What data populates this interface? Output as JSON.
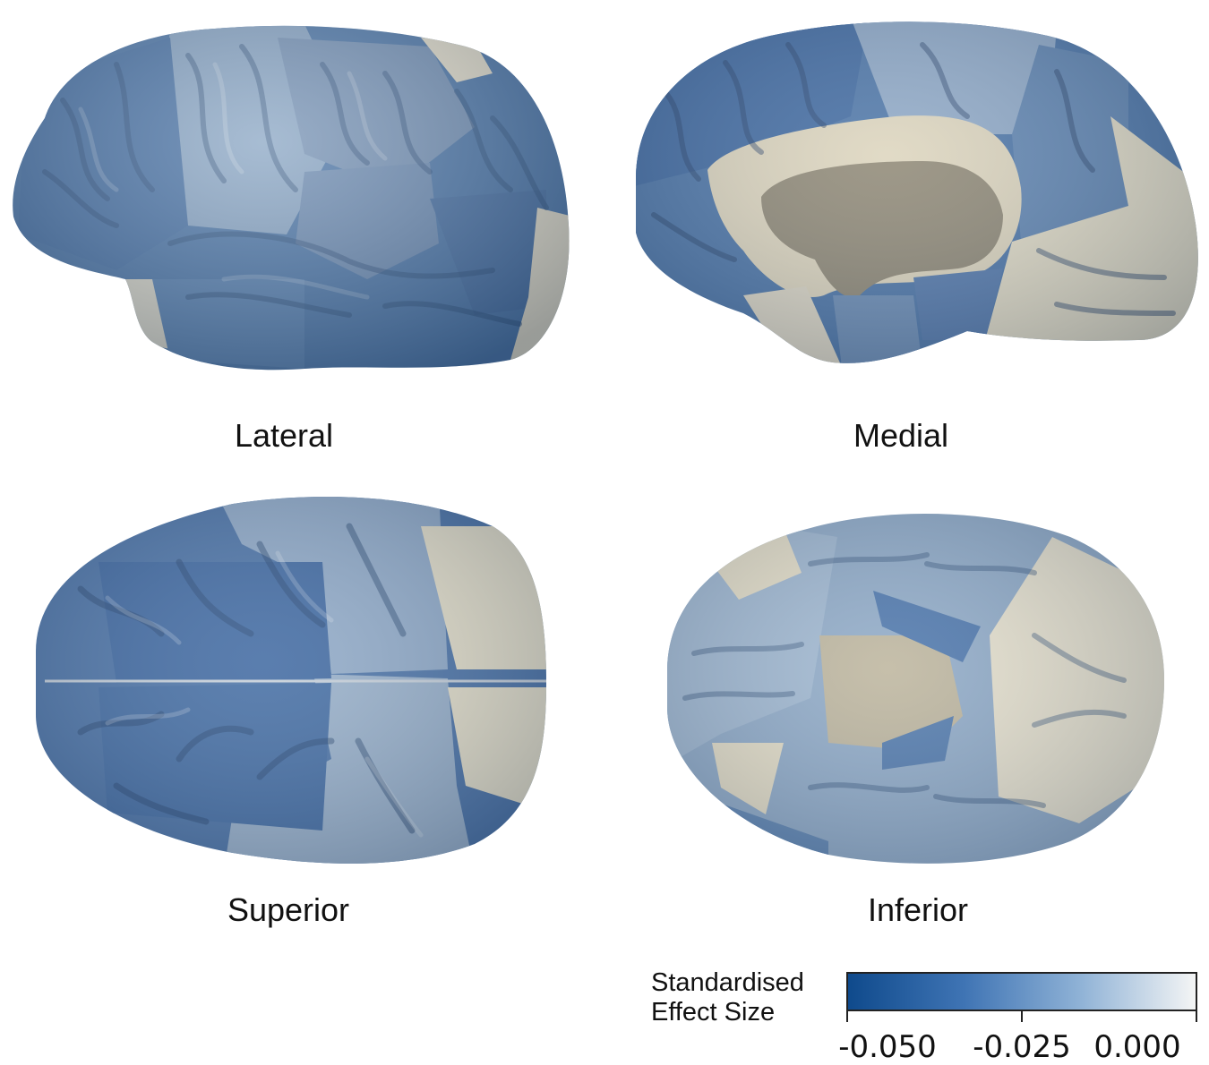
{
  "views": {
    "lateral": "Lateral",
    "medial": "Medial",
    "superior": "Superior",
    "inferior": "Inferior"
  },
  "legend": {
    "title_line1": "Standardised",
    "title_line2": "Effect Size",
    "ticks": [
      "-0.050",
      "-0.025",
      "0.000"
    ],
    "colormap": [
      "#0f4a8c",
      "#3f74b4",
      "#8fb2d6",
      "#f4f5f5"
    ]
  },
  "colors": {
    "dark_blue": "#3e6aa0",
    "mid_blue": "#5d86b4",
    "light_blue": "#8eaccb",
    "grey_blue": "#a4b7cc",
    "cream": "#e3ddc6",
    "dark_cream": "#8a8470"
  }
}
